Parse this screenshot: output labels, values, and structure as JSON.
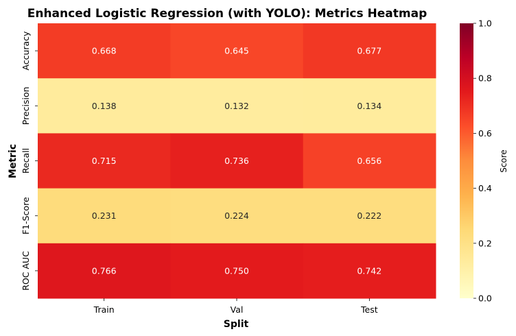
{
  "chart_data": {
    "type": "heatmap",
    "title": "Enhanced Logistic Regression (with YOLO): Metrics Heatmap",
    "xlabel": "Split",
    "ylabel": "Metric",
    "x_categories": [
      "Train",
      "Val",
      "Test"
    ],
    "y_categories": [
      "Accuracy",
      "Precision",
      "Recall",
      "F1-Score",
      "ROC AUC"
    ],
    "values": [
      [
        0.668,
        0.645,
        0.677
      ],
      [
        0.138,
        0.132,
        0.134
      ],
      [
        0.715,
        0.736,
        0.656
      ],
      [
        0.231,
        0.224,
        0.222
      ],
      [
        0.766,
        0.75,
        0.742
      ]
    ],
    "value_labels": [
      [
        "0.668",
        "0.645",
        "0.677"
      ],
      [
        "0.138",
        "0.132",
        "0.134"
      ],
      [
        "0.715",
        "0.736",
        "0.656"
      ],
      [
        "0.231",
        "0.224",
        "0.222"
      ],
      [
        "0.766",
        "0.750",
        "0.742"
      ]
    ],
    "colorbar": {
      "label": "Score",
      "range": [
        0,
        1
      ],
      "ticks": [
        "0.0",
        "0.2",
        "0.4",
        "0.6",
        "0.8",
        "1.0"
      ],
      "colormap": "YlOrRd"
    }
  }
}
